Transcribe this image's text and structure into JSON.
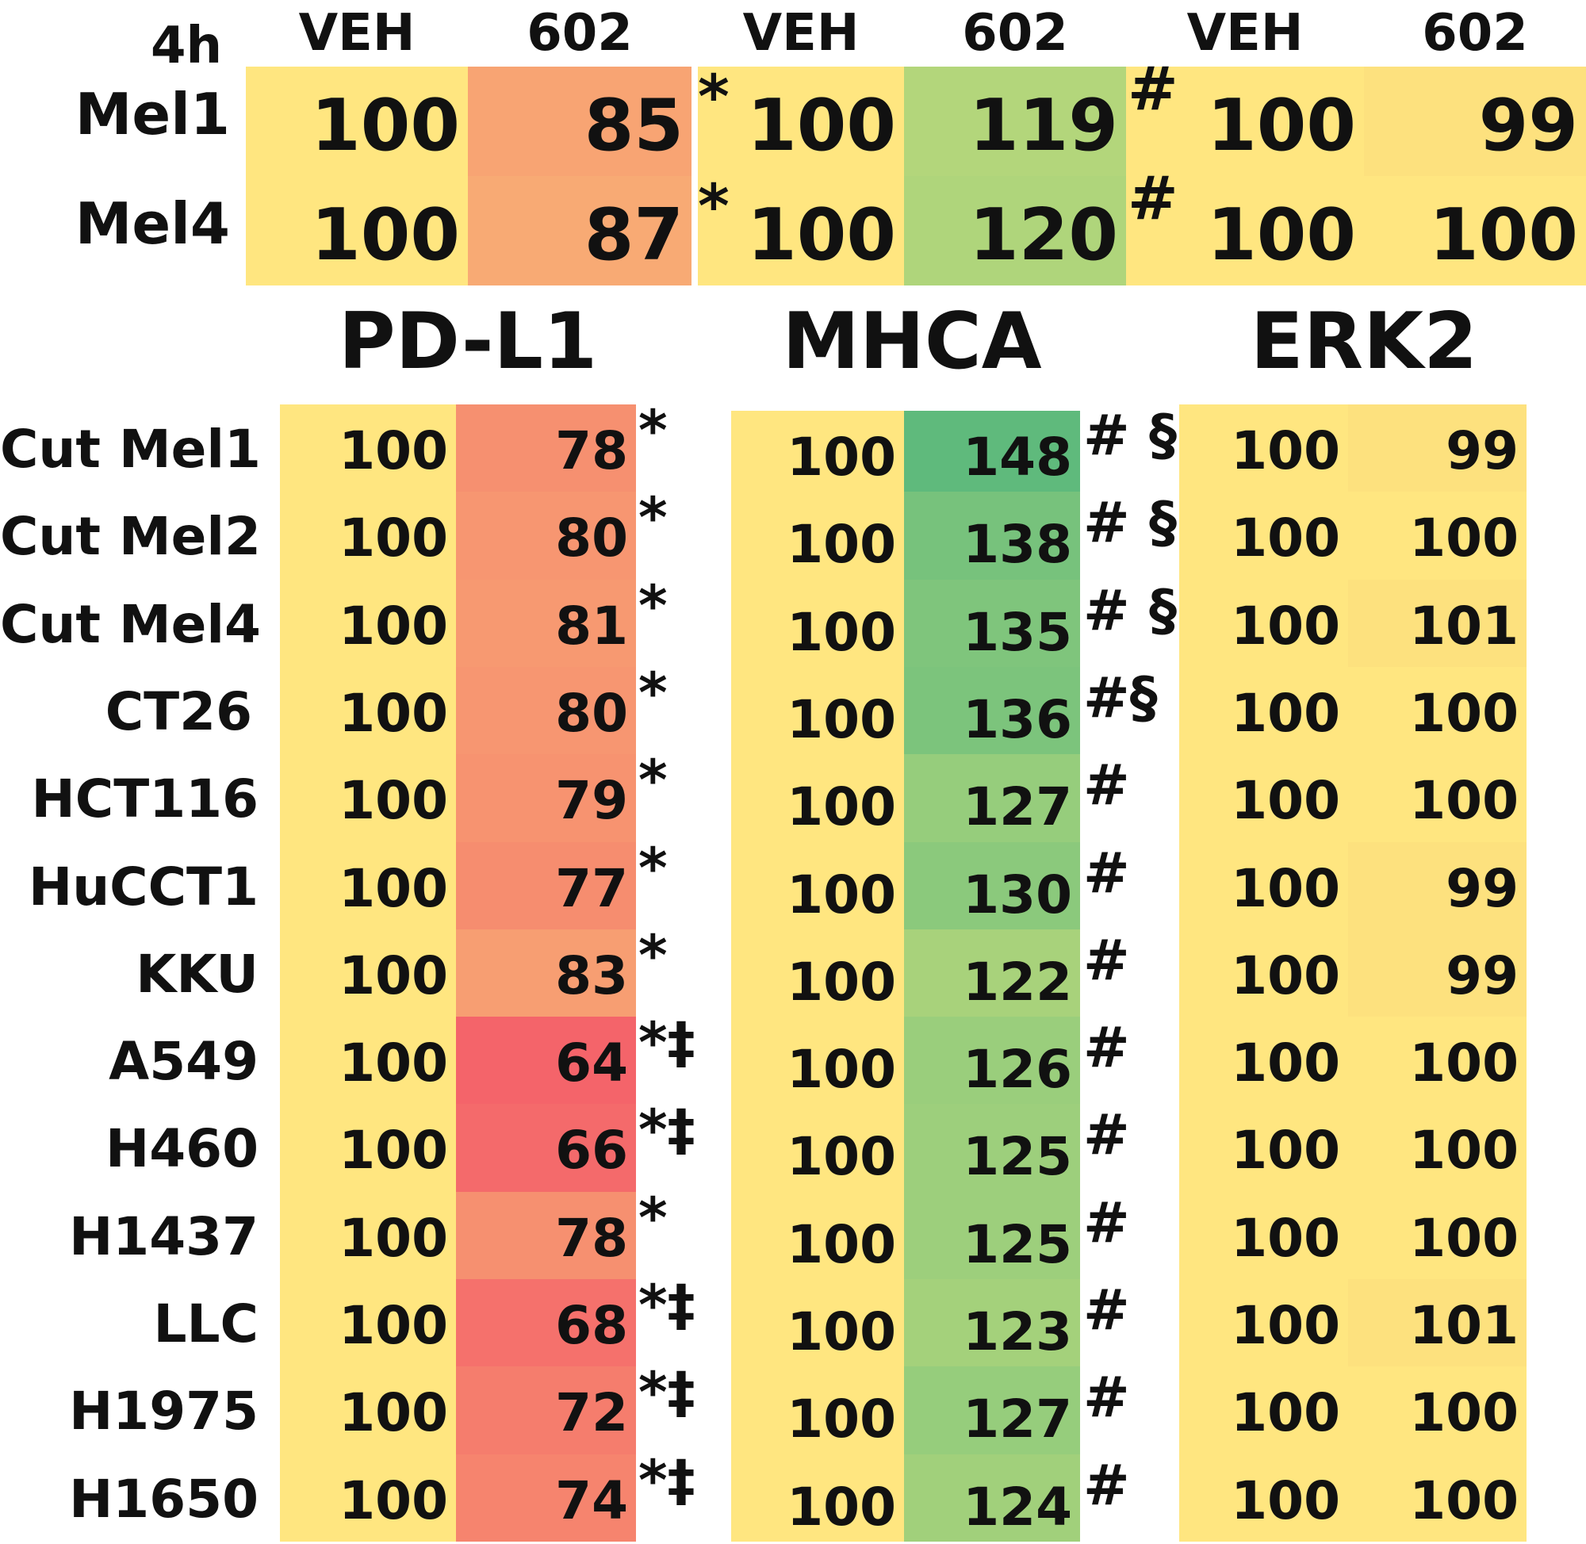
{
  "colors": {
    "veh": "#ffe680",
    "pd_red_strong": "#f4646a",
    "pd_red_mid": "#f68a6f",
    "pd_orange": "#f8aa74",
    "mh_green_strong": "#5fba7c",
    "mh_green_mid": "#8bc97c",
    "mh_green_light": "#b3d67b",
    "erk_yellow": "#fde17e"
  },
  "chart_data": {
    "type": "table",
    "series_names": [
      "PD-L1",
      "MHCA",
      "ERK2"
    ],
    "top": {
      "timepoint_label": "4h",
      "columns": [
        "VEH",
        "602",
        "VEH",
        "602",
        "VEH",
        "602"
      ],
      "rows": [
        {
          "label": "Mel1",
          "values": [
            100,
            85,
            100,
            119,
            100,
            99
          ],
          "marks": [
            "*",
            "#",
            ""
          ]
        },
        {
          "label": "Mel4",
          "values": [
            100,
            87,
            100,
            120,
            100,
            100
          ],
          "marks": [
            "*",
            "#",
            ""
          ]
        }
      ]
    },
    "bottom": {
      "rows": [
        {
          "label": "Cut Mel1",
          "values": [
            100,
            78,
            100,
            148,
            100,
            99
          ],
          "marks": [
            "*",
            "# §",
            ""
          ]
        },
        {
          "label": "Cut Mel2",
          "values": [
            100,
            80,
            100,
            138,
            100,
            100
          ],
          "marks": [
            "*",
            "# §",
            ""
          ]
        },
        {
          "label": "Cut Mel4",
          "values": [
            100,
            81,
            100,
            135,
            100,
            101
          ],
          "marks": [
            "*",
            "# §",
            ""
          ]
        },
        {
          "label": "CT26",
          "values": [
            100,
            80,
            100,
            136,
            100,
            100
          ],
          "marks": [
            "*",
            "#§",
            ""
          ]
        },
        {
          "label": "HCT116",
          "values": [
            100,
            79,
            100,
            127,
            100,
            100
          ],
          "marks": [
            "*",
            "#",
            ""
          ]
        },
        {
          "label": "HuCCT1",
          "values": [
            100,
            77,
            100,
            130,
            100,
            99
          ],
          "marks": [
            "*",
            "#",
            ""
          ]
        },
        {
          "label": "KKU",
          "values": [
            100,
            83,
            100,
            122,
            100,
            99
          ],
          "marks": [
            "*",
            "#",
            ""
          ]
        },
        {
          "label": "A549",
          "values": [
            100,
            64,
            100,
            126,
            100,
            100
          ],
          "marks": [
            "*‡",
            "#",
            ""
          ]
        },
        {
          "label": "H460",
          "values": [
            100,
            66,
            100,
            125,
            100,
            100
          ],
          "marks": [
            "*‡",
            "#",
            ""
          ]
        },
        {
          "label": "H1437",
          "values": [
            100,
            78,
            100,
            125,
            100,
            100
          ],
          "marks": [
            "*",
            "#",
            ""
          ]
        },
        {
          "label": "LLC",
          "values": [
            100,
            68,
            100,
            123,
            100,
            101
          ],
          "marks": [
            "*‡",
            "#",
            ""
          ]
        },
        {
          "label": "H1975",
          "values": [
            100,
            72,
            100,
            127,
            100,
            100
          ],
          "marks": [
            "*‡",
            "#",
            ""
          ]
        },
        {
          "label": "H1650",
          "values": [
            100,
            74,
            100,
            124,
            100,
            100
          ],
          "marks": [
            "*‡",
            "#",
            ""
          ]
        }
      ]
    }
  }
}
